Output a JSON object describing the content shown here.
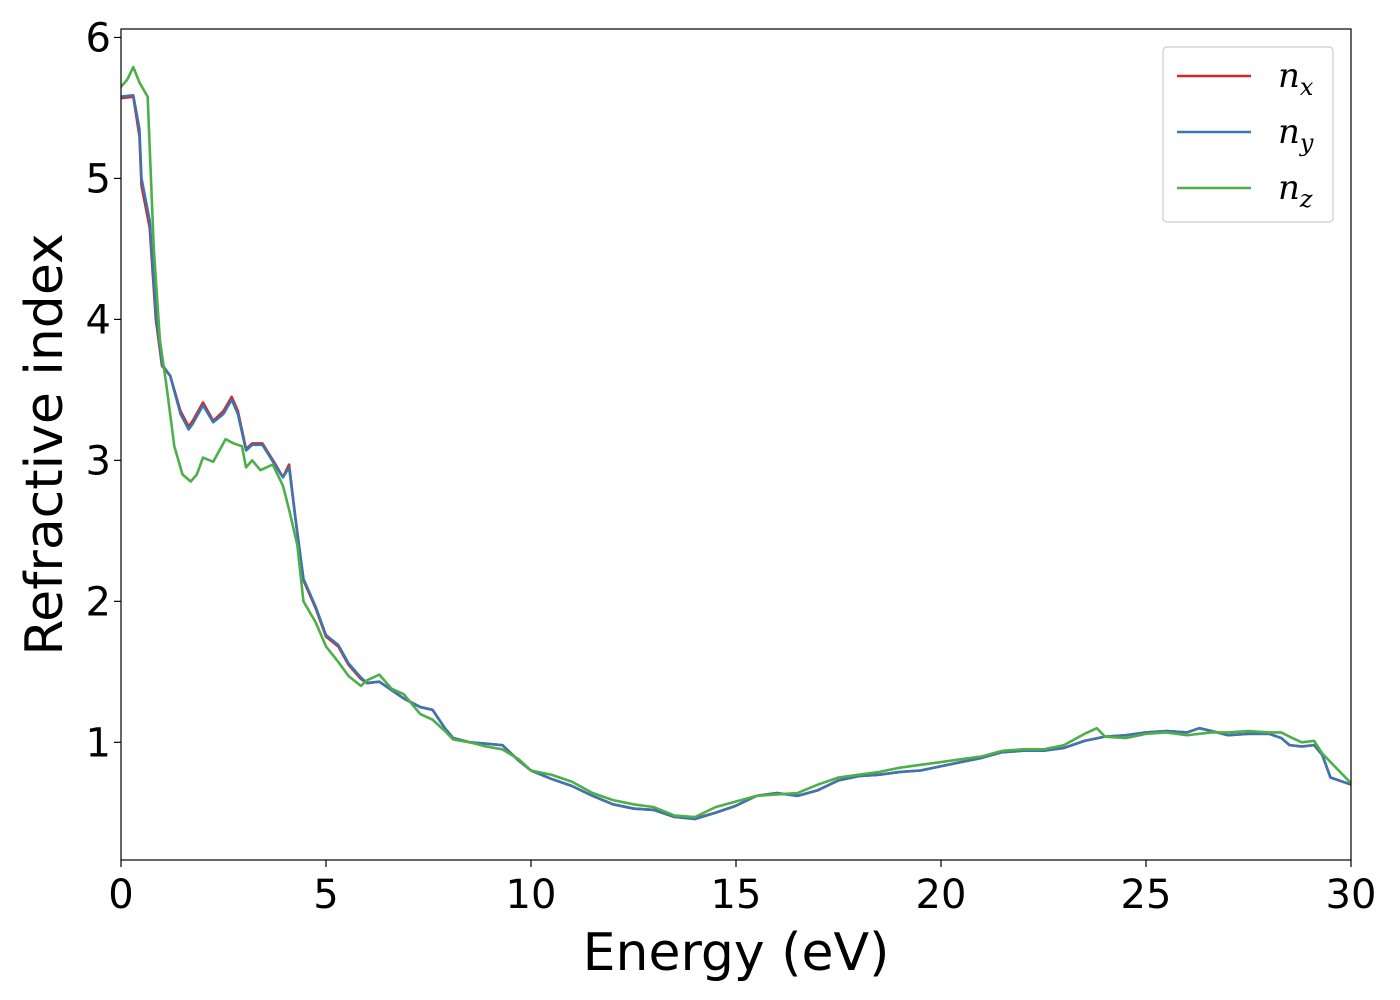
{
  "chart_data": {
    "type": "line",
    "xlabel": "Energy (eV)",
    "ylabel": "Refractive index",
    "xlim": [
      0,
      30
    ],
    "ylim": [
      0.165,
      6.06
    ],
    "xticks": [
      0,
      5,
      10,
      15,
      20,
      25,
      30
    ],
    "yticks": [
      1,
      2,
      3,
      4,
      5,
      6
    ],
    "grid": false,
    "legend_position": "top-right",
    "series": [
      {
        "name": "n_x",
        "label_base": "n",
        "label_sub": "x",
        "color": "#d62728",
        "points": [
          [
            0,
            5.57
          ],
          [
            0.3,
            5.58
          ],
          [
            0.45,
            5.3
          ],
          [
            0.5,
            4.95
          ],
          [
            0.7,
            4.65
          ],
          [
            0.85,
            4.0
          ],
          [
            1.0,
            3.67
          ],
          [
            1.2,
            3.6
          ],
          [
            1.45,
            3.35
          ],
          [
            1.65,
            3.24
          ],
          [
            1.75,
            3.28
          ],
          [
            2.0,
            3.41
          ],
          [
            2.25,
            3.28
          ],
          [
            2.5,
            3.35
          ],
          [
            2.7,
            3.45
          ],
          [
            2.85,
            3.35
          ],
          [
            3.05,
            3.08
          ],
          [
            3.2,
            3.12
          ],
          [
            3.45,
            3.12
          ],
          [
            3.75,
            2.98
          ],
          [
            3.95,
            2.88
          ],
          [
            4.1,
            2.97
          ],
          [
            4.25,
            2.6
          ],
          [
            4.45,
            2.15
          ],
          [
            4.75,
            1.95
          ],
          [
            5.0,
            1.75
          ],
          [
            5.3,
            1.68
          ],
          [
            5.55,
            1.55
          ],
          [
            5.85,
            1.45
          ],
          [
            6.0,
            1.42
          ],
          [
            6.3,
            1.43
          ],
          [
            6.6,
            1.37
          ],
          [
            6.9,
            1.31
          ],
          [
            7.3,
            1.25
          ],
          [
            7.6,
            1.23
          ],
          [
            7.9,
            1.1
          ],
          [
            8.1,
            1.03
          ],
          [
            8.5,
            1.0
          ],
          [
            8.9,
            0.99
          ],
          [
            9.3,
            0.98
          ],
          [
            9.7,
            0.87
          ],
          [
            10.0,
            0.8
          ],
          [
            10.5,
            0.74
          ],
          [
            11.0,
            0.69
          ],
          [
            11.5,
            0.62
          ],
          [
            12.0,
            0.56
          ],
          [
            12.5,
            0.53
          ],
          [
            13.0,
            0.52
          ],
          [
            13.5,
            0.47
          ],
          [
            14.0,
            0.46
          ],
          [
            14.5,
            0.5
          ],
          [
            15.0,
            0.55
          ],
          [
            15.5,
            0.62
          ],
          [
            16.0,
            0.64
          ],
          [
            16.5,
            0.62
          ],
          [
            17.0,
            0.66
          ],
          [
            17.5,
            0.73
          ],
          [
            18.0,
            0.76
          ],
          [
            18.5,
            0.77
          ],
          [
            19.0,
            0.79
          ],
          [
            19.5,
            0.8
          ],
          [
            20.0,
            0.83
          ],
          [
            20.5,
            0.86
          ],
          [
            21.0,
            0.89
          ],
          [
            21.5,
            0.93
          ],
          [
            22.0,
            0.94
          ],
          [
            22.5,
            0.94
          ],
          [
            23.0,
            0.96
          ],
          [
            23.5,
            1.01
          ],
          [
            24.0,
            1.04
          ],
          [
            24.5,
            1.05
          ],
          [
            25.0,
            1.07
          ],
          [
            25.5,
            1.08
          ],
          [
            26.0,
            1.07
          ],
          [
            26.3,
            1.1
          ],
          [
            26.6,
            1.08
          ],
          [
            27.0,
            1.05
          ],
          [
            27.5,
            1.06
          ],
          [
            28.0,
            1.06
          ],
          [
            28.3,
            1.03
          ],
          [
            28.5,
            0.98
          ],
          [
            28.8,
            0.97
          ],
          [
            29.1,
            0.98
          ],
          [
            29.3,
            0.91
          ],
          [
            29.5,
            0.75
          ],
          [
            30.0,
            0.7
          ]
        ]
      },
      {
        "name": "n_y",
        "label_base": "n",
        "label_sub": "y",
        "color": "#3c76af",
        "points": [
          [
            0,
            5.58
          ],
          [
            0.3,
            5.59
          ],
          [
            0.45,
            5.35
          ],
          [
            0.5,
            5.0
          ],
          [
            0.7,
            4.7
          ],
          [
            0.85,
            4.05
          ],
          [
            1.0,
            3.68
          ],
          [
            1.2,
            3.6
          ],
          [
            1.45,
            3.33
          ],
          [
            1.65,
            3.22
          ],
          [
            1.75,
            3.26
          ],
          [
            2.0,
            3.39
          ],
          [
            2.25,
            3.27
          ],
          [
            2.5,
            3.33
          ],
          [
            2.7,
            3.43
          ],
          [
            2.85,
            3.33
          ],
          [
            3.05,
            3.07
          ],
          [
            3.2,
            3.11
          ],
          [
            3.45,
            3.11
          ],
          [
            3.75,
            2.97
          ],
          [
            3.95,
            2.88
          ],
          [
            4.1,
            2.95
          ],
          [
            4.25,
            2.6
          ],
          [
            4.45,
            2.16
          ],
          [
            4.75,
            1.96
          ],
          [
            5.0,
            1.76
          ],
          [
            5.3,
            1.69
          ],
          [
            5.55,
            1.56
          ],
          [
            5.85,
            1.46
          ],
          [
            6.0,
            1.42
          ],
          [
            6.3,
            1.43
          ],
          [
            6.6,
            1.37
          ],
          [
            6.9,
            1.31
          ],
          [
            7.3,
            1.25
          ],
          [
            7.6,
            1.23
          ],
          [
            7.9,
            1.1
          ],
          [
            8.1,
            1.03
          ],
          [
            8.5,
            1.0
          ],
          [
            8.9,
            0.99
          ],
          [
            9.3,
            0.98
          ],
          [
            9.7,
            0.87
          ],
          [
            10.0,
            0.8
          ],
          [
            10.5,
            0.74
          ],
          [
            11.0,
            0.69
          ],
          [
            11.5,
            0.62
          ],
          [
            12.0,
            0.56
          ],
          [
            12.5,
            0.53
          ],
          [
            13.0,
            0.52
          ],
          [
            13.5,
            0.47
          ],
          [
            14.0,
            0.455
          ],
          [
            14.5,
            0.5
          ],
          [
            15.0,
            0.55
          ],
          [
            15.5,
            0.62
          ],
          [
            16.0,
            0.64
          ],
          [
            16.5,
            0.62
          ],
          [
            17.0,
            0.66
          ],
          [
            17.5,
            0.73
          ],
          [
            18.0,
            0.76
          ],
          [
            18.5,
            0.77
          ],
          [
            19.0,
            0.79
          ],
          [
            19.5,
            0.8
          ],
          [
            20.0,
            0.83
          ],
          [
            20.5,
            0.86
          ],
          [
            21.0,
            0.89
          ],
          [
            21.5,
            0.93
          ],
          [
            22.0,
            0.94
          ],
          [
            22.5,
            0.94
          ],
          [
            23.0,
            0.96
          ],
          [
            23.5,
            1.01
          ],
          [
            24.0,
            1.04
          ],
          [
            24.5,
            1.05
          ],
          [
            25.0,
            1.07
          ],
          [
            25.5,
            1.08
          ],
          [
            26.0,
            1.07
          ],
          [
            26.3,
            1.1
          ],
          [
            26.6,
            1.08
          ],
          [
            27.0,
            1.05
          ],
          [
            27.5,
            1.06
          ],
          [
            28.0,
            1.06
          ],
          [
            28.3,
            1.03
          ],
          [
            28.5,
            0.98
          ],
          [
            28.8,
            0.97
          ],
          [
            29.1,
            0.98
          ],
          [
            29.3,
            0.91
          ],
          [
            29.5,
            0.75
          ],
          [
            30.0,
            0.7
          ]
        ]
      },
      {
        "name": "n_z",
        "label_base": "n",
        "label_sub": "z",
        "color": "#4daf4a",
        "points": [
          [
            0,
            5.65
          ],
          [
            0.15,
            5.7
          ],
          [
            0.3,
            5.79
          ],
          [
            0.45,
            5.68
          ],
          [
            0.55,
            5.63
          ],
          [
            0.65,
            5.58
          ],
          [
            0.8,
            4.5
          ],
          [
            0.95,
            3.85
          ],
          [
            1.1,
            3.55
          ],
          [
            1.3,
            3.1
          ],
          [
            1.5,
            2.9
          ],
          [
            1.7,
            2.85
          ],
          [
            1.85,
            2.9
          ],
          [
            2.0,
            3.02
          ],
          [
            2.25,
            2.99
          ],
          [
            2.55,
            3.15
          ],
          [
            2.75,
            3.12
          ],
          [
            2.95,
            3.1
          ],
          [
            3.05,
            2.95
          ],
          [
            3.2,
            3.0
          ],
          [
            3.4,
            2.93
          ],
          [
            3.7,
            2.97
          ],
          [
            3.95,
            2.82
          ],
          [
            4.1,
            2.65
          ],
          [
            4.3,
            2.4
          ],
          [
            4.45,
            2.0
          ],
          [
            4.75,
            1.85
          ],
          [
            5.0,
            1.68
          ],
          [
            5.3,
            1.57
          ],
          [
            5.55,
            1.47
          ],
          [
            5.85,
            1.4
          ],
          [
            6.0,
            1.44
          ],
          [
            6.3,
            1.48
          ],
          [
            6.6,
            1.38
          ],
          [
            6.9,
            1.34
          ],
          [
            7.3,
            1.2
          ],
          [
            7.6,
            1.16
          ],
          [
            7.9,
            1.08
          ],
          [
            8.1,
            1.02
          ],
          [
            8.5,
            1.0
          ],
          [
            8.9,
            0.97
          ],
          [
            9.3,
            0.95
          ],
          [
            9.7,
            0.88
          ],
          [
            10.0,
            0.8
          ],
          [
            10.5,
            0.77
          ],
          [
            11.0,
            0.72
          ],
          [
            11.5,
            0.64
          ],
          [
            12.0,
            0.59
          ],
          [
            12.5,
            0.56
          ],
          [
            13.0,
            0.54
          ],
          [
            13.5,
            0.48
          ],
          [
            14.0,
            0.47
          ],
          [
            14.5,
            0.54
          ],
          [
            15.0,
            0.58
          ],
          [
            15.5,
            0.62
          ],
          [
            16.0,
            0.63
          ],
          [
            16.5,
            0.64
          ],
          [
            17.0,
            0.7
          ],
          [
            17.5,
            0.75
          ],
          [
            18.0,
            0.77
          ],
          [
            18.5,
            0.79
          ],
          [
            19.0,
            0.82
          ],
          [
            19.5,
            0.84
          ],
          [
            20.0,
            0.86
          ],
          [
            20.5,
            0.88
          ],
          [
            21.0,
            0.9
          ],
          [
            21.5,
            0.94
          ],
          [
            22.0,
            0.95
          ],
          [
            22.5,
            0.95
          ],
          [
            23.0,
            0.98
          ],
          [
            23.5,
            1.06
          ],
          [
            23.8,
            1.1
          ],
          [
            24.0,
            1.04
          ],
          [
            24.5,
            1.03
          ],
          [
            25.0,
            1.06
          ],
          [
            25.5,
            1.07
          ],
          [
            26.0,
            1.05
          ],
          [
            26.3,
            1.06
          ],
          [
            26.6,
            1.07
          ],
          [
            27.0,
            1.07
          ],
          [
            27.5,
            1.08
          ],
          [
            28.0,
            1.07
          ],
          [
            28.3,
            1.07
          ],
          [
            28.5,
            1.04
          ],
          [
            28.8,
            1.0
          ],
          [
            29.1,
            1.01
          ],
          [
            29.3,
            0.92
          ],
          [
            29.6,
            0.83
          ],
          [
            30.0,
            0.71
          ]
        ]
      }
    ]
  }
}
